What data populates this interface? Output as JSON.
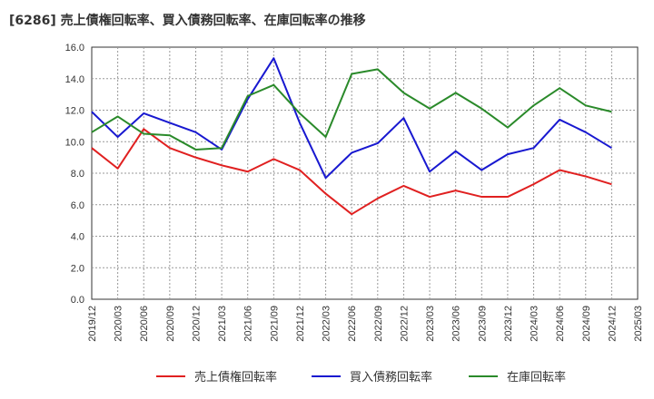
{
  "chart_data": {
    "type": "line",
    "title": "[6286]  売上債権回転率、買入債務回転率、在庫回転率の推移",
    "xlabel": "",
    "ylabel": "",
    "ylim": [
      0,
      16
    ],
    "yticks": [
      "0.0",
      "2.0",
      "4.0",
      "6.0",
      "8.0",
      "10.0",
      "12.0",
      "14.0",
      "16.0"
    ],
    "x_tick_labels": [
      "2019/12",
      "2020/03",
      "2020/06",
      "2020/09",
      "2020/12",
      "2021/03",
      "2021/06",
      "2021/09",
      "2021/12",
      "2022/03",
      "2022/06",
      "2022/09",
      "2022/12",
      "2023/03",
      "2023/06",
      "2023/09",
      "2023/12",
      "2024/03",
      "2024/06",
      "2024/09",
      "2024/12",
      "2025/03"
    ],
    "categories": [
      "2019/12",
      "2020/03",
      "2020/06",
      "2020/09",
      "2020/12",
      "2021/03",
      "2021/06",
      "2021/09",
      "2021/12",
      "2022/03",
      "2022/06",
      "2022/09",
      "2022/12",
      "2023/03",
      "2023/06",
      "2023/09",
      "2023/12",
      "2024/03",
      "2024/06",
      "2024/09",
      "2024/12"
    ],
    "grid": true,
    "legend_position": "bottom",
    "series": [
      {
        "name": "売上債権回転率",
        "color": "#e02020",
        "values": [
          9.6,
          8.3,
          10.8,
          9.6,
          9.0,
          8.5,
          8.1,
          8.9,
          8.2,
          6.7,
          5.4,
          6.4,
          7.2,
          6.5,
          6.9,
          6.5,
          6.5,
          7.3,
          8.2,
          7.8,
          7.3
        ]
      },
      {
        "name": "買入債務回転率",
        "color": "#1818d0",
        "values": [
          11.9,
          10.3,
          11.8,
          11.2,
          10.6,
          9.5,
          12.7,
          15.3,
          11.2,
          7.7,
          9.3,
          9.9,
          11.5,
          8.1,
          9.4,
          8.2,
          9.2,
          9.6,
          11.4,
          10.6,
          9.6
        ]
      },
      {
        "name": "在庫回転率",
        "color": "#2a8a2a",
        "values": [
          10.6,
          11.6,
          10.5,
          10.4,
          9.5,
          9.6,
          12.9,
          13.6,
          11.8,
          10.3,
          14.3,
          14.6,
          13.1,
          12.1,
          13.1,
          12.1,
          10.9,
          12.3,
          13.4,
          12.3,
          11.9
        ]
      }
    ]
  }
}
